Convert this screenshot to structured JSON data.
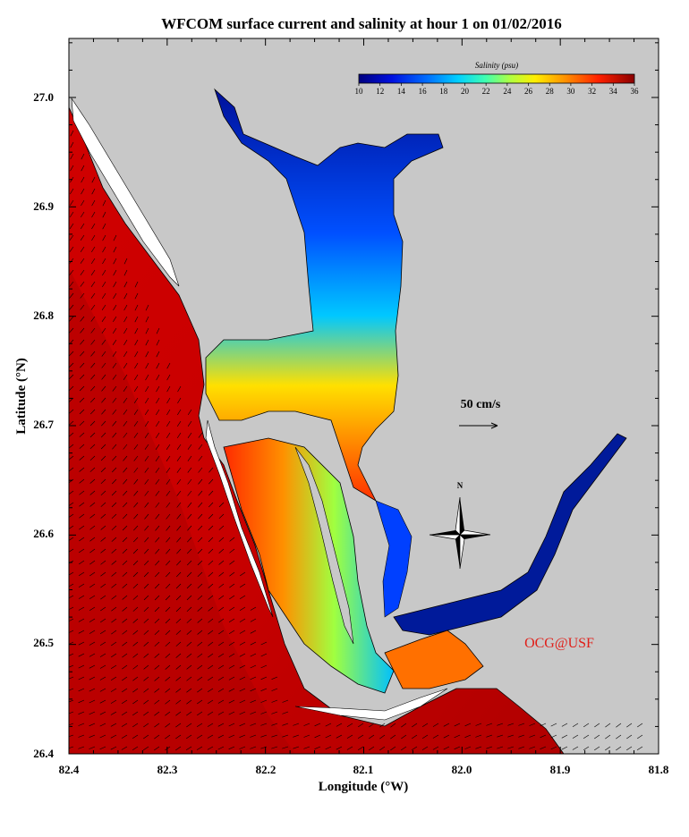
{
  "title": "WFCOM surface current and salinity at hour 1 on 01/02/2016",
  "xlabel": "Longitude (°W)",
  "ylabel": "Latitude (°N)",
  "x_ticks": [
    "82.4",
    "82.3",
    "82.2",
    "82.1",
    "82.0",
    "81.9",
    "81.8"
  ],
  "y_ticks": [
    "27.0",
    "26.9",
    "26.8",
    "26.7",
    "26.6",
    "26.5",
    "26.4"
  ],
  "colorbar": {
    "title": "Salinity (psu)",
    "ticks": [
      "10",
      "12",
      "14",
      "16",
      "18",
      "20",
      "22",
      "24",
      "26",
      "28",
      "30",
      "32",
      "34",
      "36"
    ],
    "range": [
      10,
      36
    ]
  },
  "scale_label": "50 cm/s",
  "north_label": "N",
  "credit": "OCG@USF",
  "colors": {
    "land": "#c8c8c8",
    "water_border": "#000000",
    "credit": "#e0201a"
  }
}
